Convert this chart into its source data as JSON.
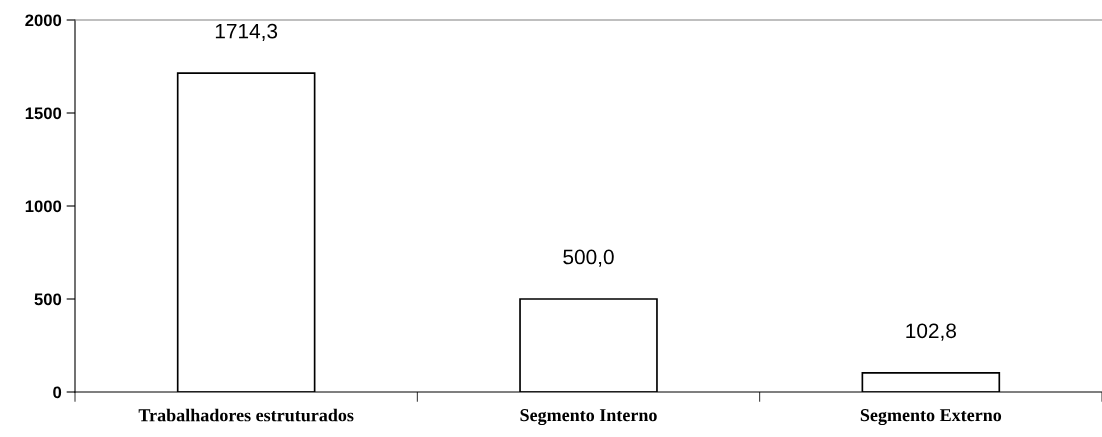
{
  "chart_data": {
    "type": "bar",
    "categories": [
      "Trabalhadores estruturados",
      "Segmento Interno",
      "Segmento Externo"
    ],
    "values": [
      1714.3,
      500.0,
      102.8
    ],
    "color": "#ffffff",
    "value_labels": [
      "1714,3",
      "500,0",
      "102,8"
    ],
    "ylim": [
      0,
      2000
    ],
    "yticks": [
      0,
      500,
      1000,
      1500,
      2000
    ],
    "grid": false,
    "legend": false
  }
}
